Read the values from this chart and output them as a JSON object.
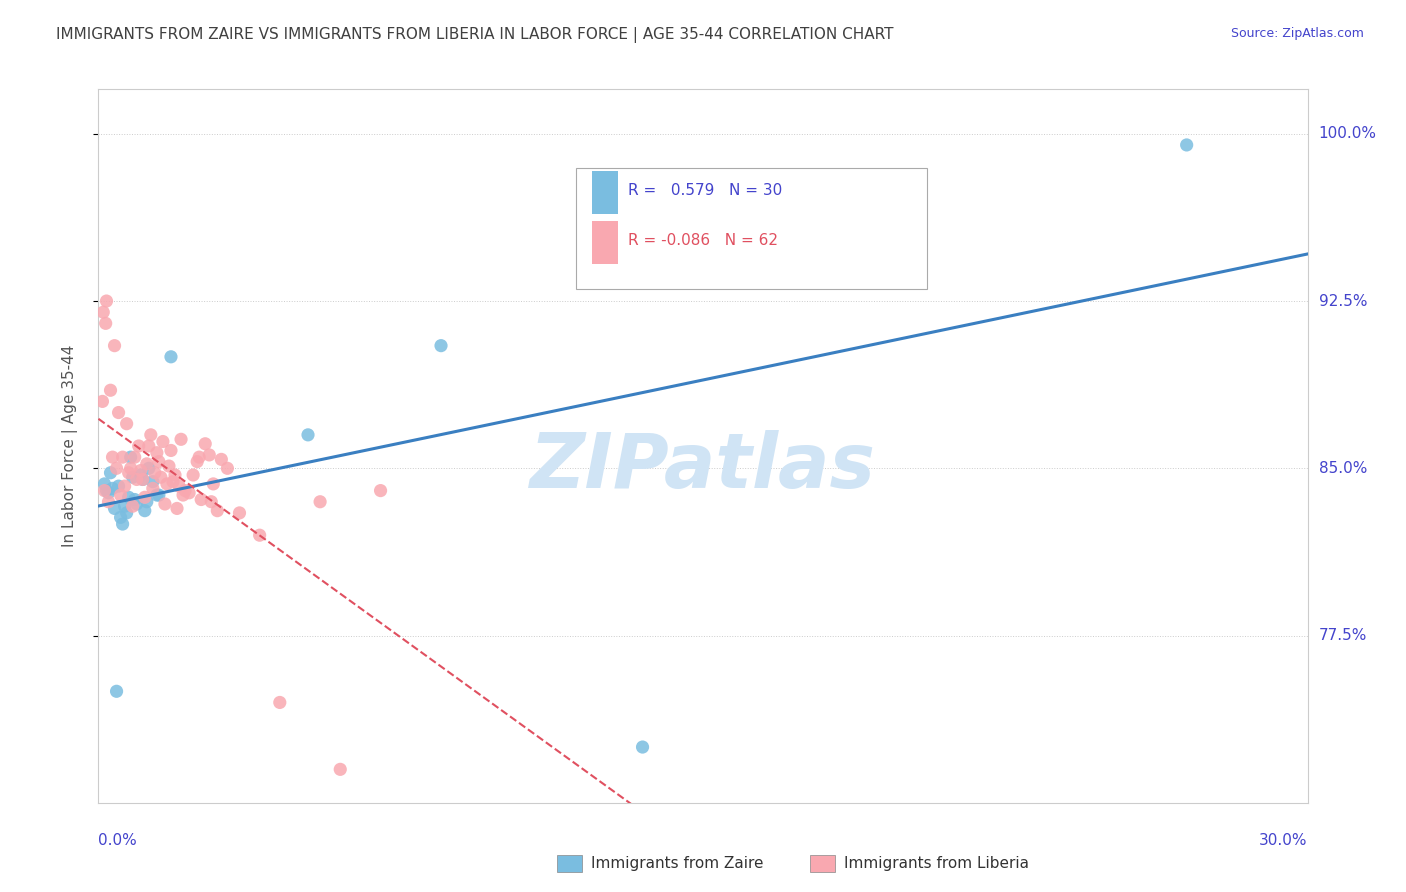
{
  "title": "IMMIGRANTS FROM ZAIRE VS IMMIGRANTS FROM LIBERIA IN LABOR FORCE | AGE 35-44 CORRELATION CHART",
  "source": "Source: ZipAtlas.com",
  "xmin": 0.0,
  "xmax": 30.0,
  "ymin": 70.0,
  "ymax": 102.0,
  "yticks": [
    77.5,
    85.0,
    92.5,
    100.0
  ],
  "watermark": "ZIPatlas",
  "legend_zaire_r": "0.579",
  "legend_zaire_n": "30",
  "legend_liberia_r": "-0.086",
  "legend_liberia_n": "62",
  "color_zaire": "#7abde0",
  "color_liberia": "#f9a8b0",
  "color_zaire_line": "#3a7fc1",
  "color_liberia_line": "#e05060",
  "color_title": "#404040",
  "color_axis_label": "#4444cc",
  "color_watermark": "#d0e4f5",
  "color_grid": "#cccccc",
  "zaire_x": [
    1.2,
    1.5,
    1.8,
    0.5,
    0.8,
    0.3,
    0.2,
    0.6,
    0.7,
    0.4,
    0.9,
    1.1,
    0.15,
    0.25,
    0.35,
    0.55,
    0.65,
    0.75,
    0.85,
    0.95,
    1.05,
    1.15,
    1.25,
    1.35,
    1.45,
    5.2,
    8.5,
    0.45,
    13.5,
    27.0
  ],
  "zaire_y": [
    83.5,
    83.8,
    90.0,
    84.2,
    85.5,
    84.8,
    84.0,
    82.5,
    83.0,
    83.2,
    83.6,
    84.5,
    84.3,
    83.9,
    84.1,
    82.8,
    83.3,
    83.7,
    84.6,
    83.4,
    84.7,
    83.1,
    85.0,
    84.4,
    83.8,
    86.5,
    90.5,
    75.0,
    72.5,
    99.5
  ],
  "liberia_x": [
    0.2,
    0.3,
    0.4,
    0.5,
    0.6,
    0.7,
    0.8,
    0.9,
    1.0,
    1.1,
    1.2,
    1.3,
    1.4,
    1.5,
    1.6,
    1.7,
    1.8,
    1.9,
    2.0,
    2.1,
    2.5,
    2.8,
    3.2,
    4.0,
    5.5,
    7.0,
    0.15,
    0.25,
    0.35,
    0.45,
    0.55,
    0.65,
    0.75,
    0.85,
    0.95,
    1.05,
    1.15,
    1.25,
    1.35,
    1.45,
    1.55,
    1.65,
    1.75,
    1.85,
    1.95,
    2.05,
    2.15,
    2.25,
    2.35,
    2.45,
    2.55,
    2.65,
    2.75,
    2.85,
    2.95,
    3.05,
    3.5,
    4.5,
    6.0,
    0.1,
    0.12,
    0.18
  ],
  "liberia_y": [
    92.5,
    88.5,
    90.5,
    87.5,
    85.5,
    87.0,
    85.0,
    85.5,
    86.0,
    84.5,
    85.2,
    86.5,
    84.8,
    85.3,
    86.2,
    84.3,
    85.8,
    84.7,
    84.2,
    83.8,
    85.5,
    83.5,
    85.0,
    82.0,
    83.5,
    84.0,
    84.0,
    83.5,
    85.5,
    85.0,
    83.8,
    84.2,
    84.8,
    83.3,
    84.5,
    84.9,
    83.7,
    86.0,
    84.1,
    85.7,
    84.6,
    83.4,
    85.1,
    84.4,
    83.2,
    86.3,
    84.0,
    83.9,
    84.7,
    85.3,
    83.6,
    86.1,
    85.6,
    84.3,
    83.1,
    85.4,
    83.0,
    74.5,
    71.5,
    88.0,
    92.0,
    91.5
  ]
}
